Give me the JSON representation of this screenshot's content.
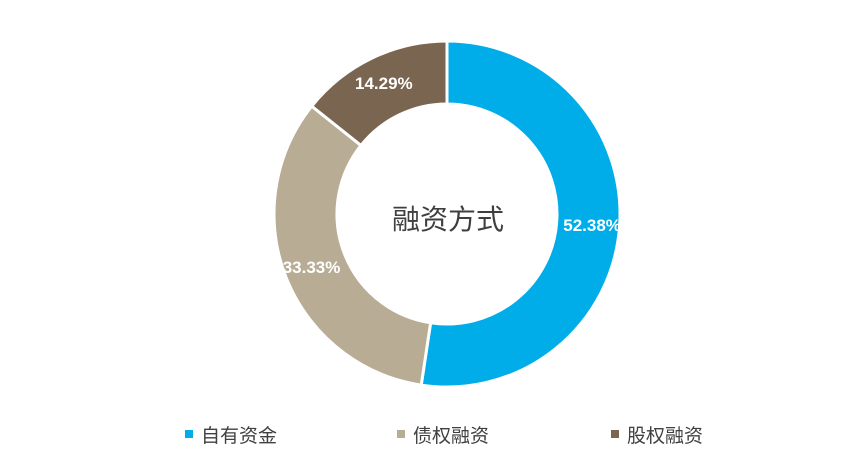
{
  "chart_data": {
    "type": "pie",
    "donut": true,
    "title": "融资方式",
    "categories": [
      "自有资金",
      "债权融资",
      "股权融资"
    ],
    "values": [
      52.38,
      33.33,
      14.29
    ],
    "labels": [
      "52.38%",
      "33.33%",
      "14.29%"
    ],
    "colors": [
      "#00ADE8",
      "#B8AC94",
      "#7A6650"
    ],
    "legend_position": "bottom"
  }
}
